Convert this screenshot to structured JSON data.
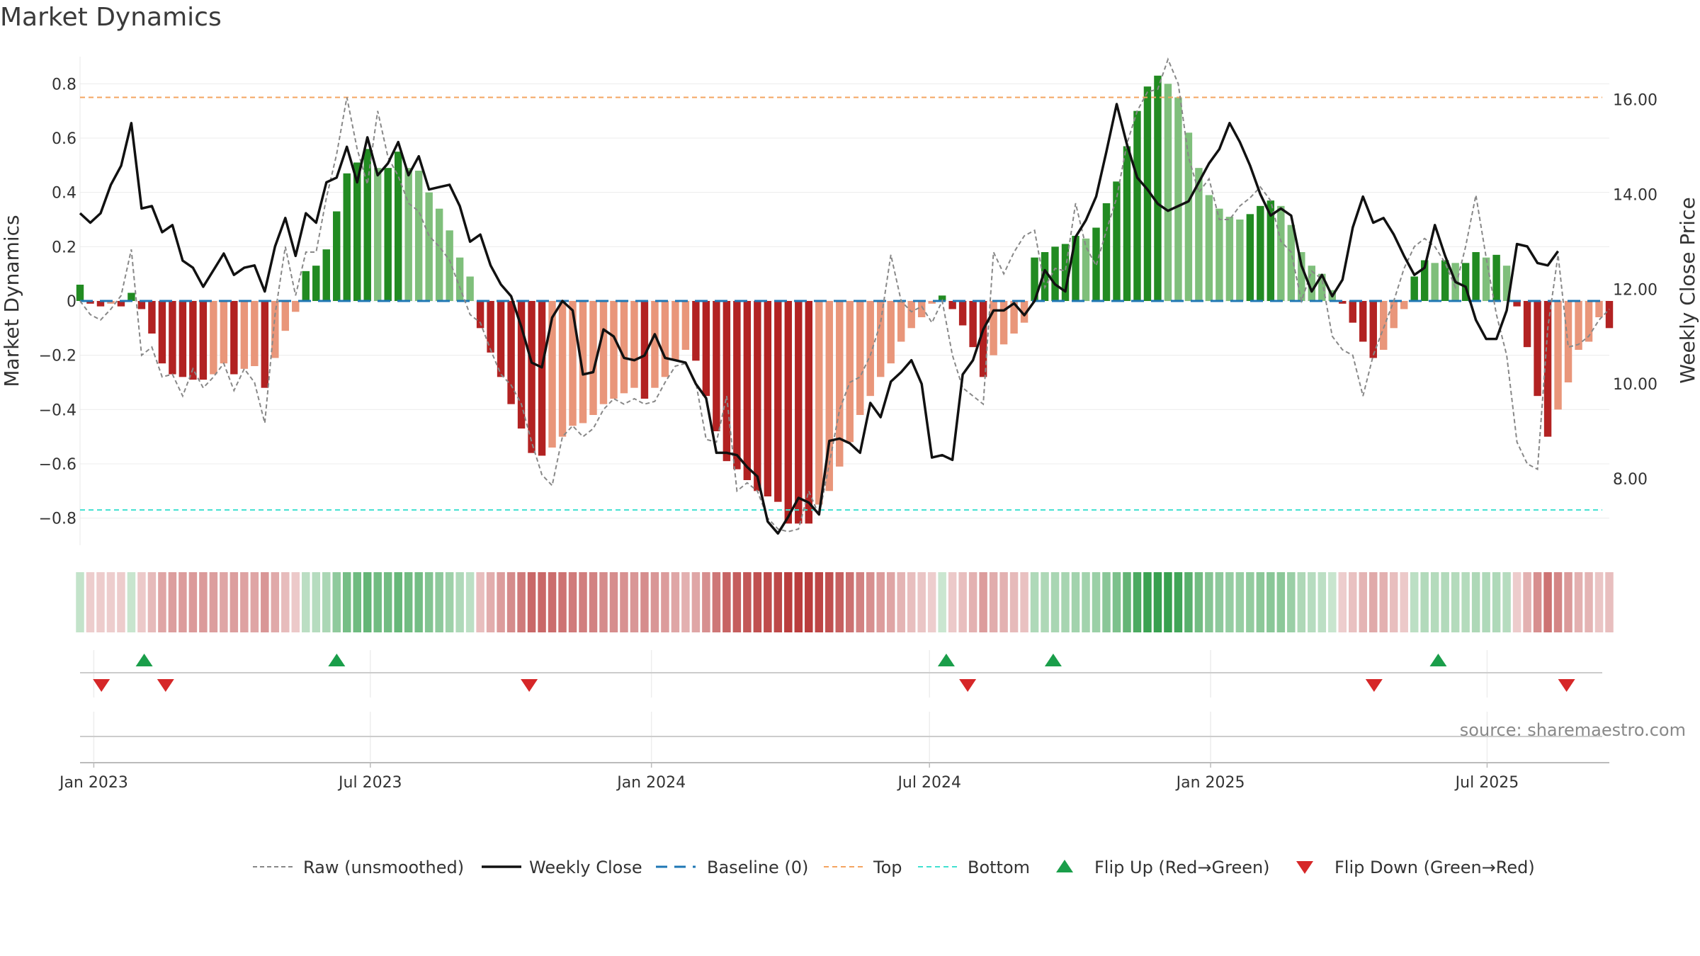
{
  "title": "Market Dynamics",
  "source": "source: sharemaestro.com",
  "chart_data": {
    "type": "bar",
    "left_axis": {
      "label": "Market Dynamics",
      "ylim": [
        -0.9,
        0.9
      ],
      "ticks": [
        0.8,
        0.6,
        0.4,
        0.2,
        0,
        -0.2,
        -0.4,
        -0.6,
        -0.8
      ],
      "tick_labels": [
        "0.8",
        "0.6",
        "0.4",
        "0.2",
        "0",
        "−0.2",
        "−0.4",
        "−0.6",
        "−0.8"
      ]
    },
    "right_axis": {
      "label": "Weekly Close Price",
      "ylim": [
        6.6,
        16.9
      ],
      "ticks": [
        16,
        14,
        12,
        10,
        8
      ],
      "tick_labels": [
        "16.00",
        "14.00",
        "12.00",
        "10.00",
        "8.00"
      ]
    },
    "x_axis": {
      "start": "2022-12-23",
      "end": "2025-09-19",
      "ticks": [
        {
          "date": "2023-01-01",
          "label": "Jan 2023"
        },
        {
          "date": "2023-07-01",
          "label": "Jul 2023"
        },
        {
          "date": "2024-01-01",
          "label": "Jan 2024"
        },
        {
          "date": "2024-07-01",
          "label": "Jul 2024"
        },
        {
          "date": "2025-01-01",
          "label": "Jan 2025"
        },
        {
          "date": "2025-07-01",
          "label": "Jul 2025"
        }
      ]
    },
    "top_line": 0.75,
    "bottom_line": -0.77,
    "baseline": 0,
    "colors": {
      "strong_up": "#228b22",
      "weak_up": "#7fbf7b",
      "strong_down": "#b22222",
      "weak_down": "#e9967a",
      "top": "#f4a460",
      "bottom": "#40e0d0",
      "baseline": "#1f77b4",
      "flip_up": "#1a9e4a",
      "flip_down": "#d62728",
      "close": "#111111",
      "raw": "#888888"
    },
    "dynamics": [
      0.06,
      -0.01,
      -0.02,
      -0.01,
      -0.02,
      0.03,
      -0.03,
      -0.12,
      -0.23,
      -0.27,
      -0.28,
      -0.29,
      -0.29,
      -0.27,
      -0.23,
      -0.27,
      -0.25,
      -0.24,
      -0.32,
      -0.21,
      -0.11,
      -0.04,
      0.11,
      0.13,
      0.19,
      0.33,
      0.47,
      0.51,
      0.56,
      0.49,
      0.49,
      0.55,
      0.49,
      0.48,
      0.4,
      0.34,
      0.26,
      0.16,
      0.09,
      -0.1,
      -0.19,
      -0.28,
      -0.38,
      -0.47,
      -0.56,
      -0.57,
      -0.54,
      -0.5,
      -0.46,
      -0.45,
      -0.42,
      -0.38,
      -0.36,
      -0.34,
      -0.32,
      -0.36,
      -0.32,
      -0.28,
      -0.22,
      -0.18,
      -0.22,
      -0.35,
      -0.48,
      -0.59,
      -0.62,
      -0.66,
      -0.7,
      -0.72,
      -0.74,
      -0.82,
      -0.82,
      -0.82,
      -0.75,
      -0.7,
      -0.61,
      -0.52,
      -0.42,
      -0.35,
      -0.28,
      -0.23,
      -0.15,
      -0.1,
      -0.06,
      -0.01,
      0.02,
      -0.03,
      -0.09,
      -0.17,
      -0.28,
      -0.2,
      -0.16,
      -0.12,
      -0.08,
      0.16,
      0.18,
      0.2,
      0.21,
      0.24,
      0.23,
      0.27,
      0.36,
      0.44,
      0.57,
      0.7,
      0.79,
      0.83,
      0.8,
      0.75,
      0.62,
      0.49,
      0.39,
      0.34,
      0.31,
      0.3,
      0.32,
      0.35,
      0.37,
      0.35,
      0.28,
      0.18,
      0.13,
      0.1,
      0.04,
      -0.01,
      -0.08,
      -0.15,
      -0.21,
      -0.18,
      -0.1,
      -0.03,
      0.09,
      0.15,
      0.14,
      0.15,
      0.14,
      0.14,
      0.18,
      0.16,
      0.17,
      0.13,
      -0.02,
      -0.17,
      -0.35,
      -0.5,
      -0.4,
      -0.3,
      -0.18,
      -0.15,
      -0.06,
      -0.1
    ],
    "close": [
      13.6,
      13.4,
      13.6,
      14.2,
      14.6,
      15.5,
      13.7,
      13.75,
      13.2,
      13.35,
      12.6,
      12.45,
      12.05,
      12.4,
      12.75,
      12.3,
      12.45,
      12.5,
      11.95,
      12.9,
      13.5,
      12.7,
      13.6,
      13.4,
      14.25,
      14.35,
      15.0,
      14.25,
      15.2,
      14.4,
      14.65,
      15.1,
      14.4,
      14.8,
      14.1,
      14.15,
      14.2,
      13.75,
      13.0,
      13.15,
      12.5,
      12.1,
      11.85,
      11.2,
      10.45,
      10.35,
      11.4,
      11.75,
      11.55,
      10.2,
      10.25,
      11.15,
      11.0,
      10.55,
      10.5,
      10.6,
      11.05,
      10.55,
      10.5,
      10.45,
      10.0,
      9.7,
      8.55,
      8.55,
      8.5,
      8.25,
      8.05,
      7.1,
      6.85,
      7.2,
      7.6,
      7.5,
      7.25,
      8.8,
      8.85,
      8.75,
      8.55,
      9.6,
      9.3,
      10.05,
      10.25,
      10.5,
      10.0,
      8.45,
      8.5,
      8.4,
      10.2,
      10.5,
      11.15,
      11.55,
      11.55,
      11.7,
      11.45,
      11.75,
      12.4,
      12.1,
      11.95,
      13.1,
      13.45,
      13.95,
      14.9,
      15.9,
      15.05,
      14.35,
      14.1,
      13.8,
      13.65,
      13.75,
      13.85,
      14.25,
      14.65,
      14.95,
      15.5,
      15.1,
      14.6,
      14.0,
      13.55,
      13.7,
      13.55,
      12.5,
      11.95,
      12.3,
      11.85,
      12.2,
      13.3,
      13.95,
      13.4,
      13.5,
      13.15,
      12.7,
      12.3,
      12.45,
      13.35,
      12.7,
      12.15,
      12.05,
      11.35,
      10.95,
      10.95,
      11.55,
      12.95,
      12.9,
      12.55,
      12.5,
      12.8
    ],
    "raw": [
      0.0,
      -0.05,
      -0.07,
      -0.03,
      0.02,
      0.19,
      -0.2,
      -0.17,
      -0.28,
      -0.27,
      -0.35,
      -0.25,
      -0.32,
      -0.28,
      -0.23,
      -0.33,
      -0.25,
      -0.3,
      -0.45,
      -0.05,
      0.2,
      0.02,
      0.18,
      0.18,
      0.38,
      0.54,
      0.75,
      0.56,
      0.43,
      0.7,
      0.53,
      0.46,
      0.36,
      0.33,
      0.24,
      0.2,
      0.15,
      0.05,
      -0.05,
      -0.08,
      -0.18,
      -0.27,
      -0.31,
      -0.38,
      -0.52,
      -0.64,
      -0.68,
      -0.5,
      -0.46,
      -0.5,
      -0.47,
      -0.4,
      -0.36,
      -0.38,
      -0.36,
      -0.38,
      -0.37,
      -0.3,
      -0.24,
      -0.23,
      -0.3,
      -0.51,
      -0.52,
      -0.35,
      -0.7,
      -0.67,
      -0.7,
      -0.8,
      -0.84,
      -0.85,
      -0.84,
      -0.7,
      -0.79,
      -0.6,
      -0.4,
      -0.3,
      -0.28,
      -0.2,
      -0.08,
      0.17,
      0.0,
      -0.04,
      -0.02,
      -0.08,
      0.0,
      -0.2,
      -0.32,
      -0.35,
      -0.38,
      0.18,
      0.1,
      0.18,
      0.24,
      0.26,
      0.05,
      0.12,
      0.11,
      0.36,
      0.2,
      0.13,
      0.26,
      0.38,
      0.58,
      0.7,
      0.77,
      0.78,
      0.89,
      0.8,
      0.53,
      0.4,
      0.45,
      0.3,
      0.3,
      0.35,
      0.38,
      0.42,
      0.37,
      0.22,
      0.18,
      0.0,
      0.11,
      0.08,
      -0.13,
      -0.18,
      -0.2,
      -0.35,
      -0.2,
      -0.1,
      0.0,
      0.12,
      0.2,
      0.23,
      0.2,
      0.14,
      0.05,
      0.2,
      0.39,
      0.16,
      -0.05,
      -0.2,
      -0.52,
      -0.6,
      -0.62,
      -0.1,
      0.17,
      -0.17,
      -0.16,
      -0.13,
      -0.07,
      -0.03
    ],
    "flip_up": [
      "2023-02-03",
      "2023-06-09",
      "2024-07-12",
      "2024-09-20",
      "2025-05-30"
    ],
    "flip_down": [
      "2023-01-06",
      "2023-02-17",
      "2023-10-13",
      "2024-07-26",
      "2025-04-18",
      "2025-08-22"
    ],
    "legend": [
      {
        "key": "raw",
        "label": "Raw (unsmoothed)"
      },
      {
        "key": "close",
        "label": "Weekly Close"
      },
      {
        "key": "baseline",
        "label": "Baseline (0)"
      },
      {
        "key": "top",
        "label": "Top"
      },
      {
        "key": "bottom",
        "label": "Bottom"
      },
      {
        "key": "flip_up",
        "label": "Flip Up (Red→Green)"
      },
      {
        "key": "flip_down",
        "label": "Flip Down (Green→Red)"
      }
    ]
  }
}
